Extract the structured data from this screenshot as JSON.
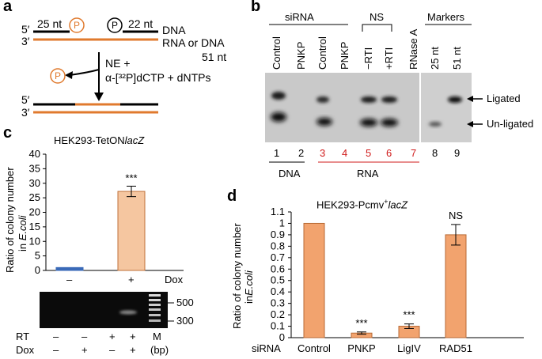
{
  "colors": {
    "rna": "#e07a2e",
    "bar_orange": "#f5c6a0",
    "bar_d": "#f2a36e",
    "bar_blue": "#3a6ab8",
    "lane_red": "#d01c1c"
  },
  "panel_a": {
    "label": "a",
    "five_prime": "5′",
    "three_prime": "3′",
    "left_len": "25 nt",
    "right_len": "22 nt",
    "phosphate": "P",
    "dna": "DNA",
    "rna_or_dna": "RNA or DNA",
    "rna_len": "51 nt",
    "reagents_line1": "NE +",
    "reagents_line2": "α-[³²P]dCTP + dNTPs",
    "five_prime_b": "5′",
    "three_prime_b": "3′"
  },
  "panel_b": {
    "label": "b",
    "group_sirna": "siRNA",
    "group_ns": "NS",
    "group_markers": "Markers",
    "lanes": [
      "Control",
      "PNKP",
      "Control",
      "PNKP",
      "−RTI",
      "+RTI",
      "RNase A",
      "25 nt",
      "51 nt"
    ],
    "lane_numbers": [
      "1",
      "2",
      "3",
      "4",
      "5",
      "6",
      "7",
      "8",
      "9"
    ],
    "lane_number_red": [
      false,
      false,
      true,
      true,
      true,
      true,
      true,
      false,
      false
    ],
    "bottom_dna": "DNA",
    "bottom_rna": "RNA",
    "ligated": "Ligated",
    "unligated": "Un-ligated"
  },
  "panel_c": {
    "label": "c",
    "title_plain": "HEK293-TetON",
    "title_italic": "lacZ",
    "ylabel_line1": "Ratio of colony number",
    "ylabel_line2_plain": "in ",
    "ylabel_line2_italic": "E.coli",
    "dox_label": "Dox",
    "x_signs": [
      "–",
      "+"
    ],
    "significance": "***",
    "gel_markers": [
      "500",
      "300"
    ],
    "rt_label": "RT",
    "dox_row_label": "Dox",
    "rt_signs": [
      "–",
      "–",
      "+",
      "+"
    ],
    "dox_signs": [
      "–",
      "+",
      "–",
      "+"
    ],
    "m_label": "M",
    "bp_label": "(bp)"
  },
  "panel_d": {
    "label": "d",
    "title_plain": "HEK293-Pcmv",
    "title_sup": "+",
    "title_italic": "lacZ",
    "ylabel_line1": "Ratio of colony number",
    "ylabel_line2_plain": "in",
    "ylabel_line2_italic": "E.coli",
    "x_row_label": "siRNA",
    "significance": [
      "",
      "***",
      "***",
      "NS"
    ]
  },
  "chart_data": [
    {
      "type": "bar",
      "title": "HEK293-TetONlacZ",
      "categories": [
        "–",
        "+"
      ],
      "values": [
        1,
        27.2
      ],
      "errors": [
        0,
        1.8
      ],
      "colors": [
        "#3a6ab8",
        "#f5c6a0"
      ],
      "xlabel": "Dox",
      "ylabel": "Ratio of colony number in E.coli",
      "ylim": [
        0,
        40
      ],
      "yticks": [
        "0",
        "5",
        "10",
        "15",
        "20",
        "25",
        "30",
        "35",
        "40"
      ]
    },
    {
      "type": "bar",
      "title": "HEK293-Pcmv+lacZ",
      "categories": [
        "Control",
        "PNKP",
        "LigIV",
        "RAD51"
      ],
      "values": [
        1,
        0.04,
        0.1,
        0.9
      ],
      "errors": [
        0,
        0.01,
        0.02,
        0.09
      ],
      "xlabel": "siRNA",
      "ylabel": "Ratio of colony number in E.coli",
      "ylim": [
        0,
        1.1
      ],
      "yticks": [
        "0",
        "0.1",
        "0.2",
        "0.3",
        "0.4",
        "0.5",
        "0.6",
        "0.7",
        "0.8",
        "0.9",
        "1",
        "1.1"
      ]
    }
  ]
}
